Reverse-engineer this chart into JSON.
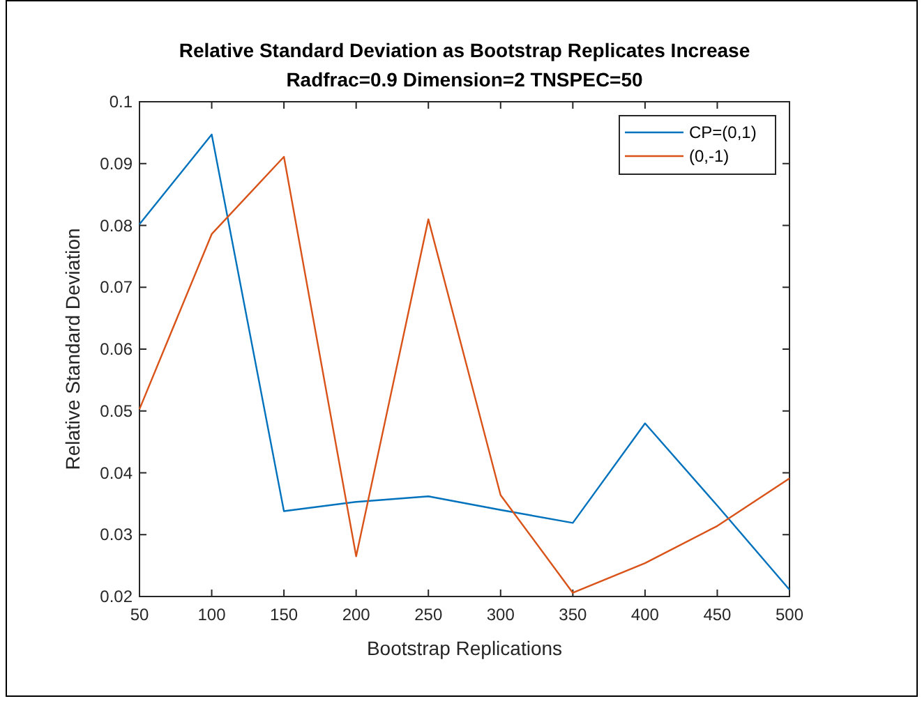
{
  "chart_data": {
    "type": "line",
    "title": "Relative Standard Deviation as Bootstrap Replicates Increase",
    "subtitle": "Radfrac=0.9 Dimension=2 TNSPEC=50",
    "xlabel": "Bootstrap Replications",
    "ylabel": "Relative Standard Deviation",
    "x": [
      50,
      100,
      150,
      200,
      250,
      300,
      350,
      400,
      450,
      500
    ],
    "series": [
      {
        "name": "CP=(0,1)",
        "color": "#0072bd",
        "values": [
          0.0802,
          0.0947,
          0.0338,
          0.0353,
          0.0362,
          0.034,
          0.0319,
          0.048,
          0.0347,
          0.0211
        ]
      },
      {
        "name": "(0,-1)",
        "color": "#d95319",
        "values": [
          0.0503,
          0.0786,
          0.0911,
          0.0265,
          0.081,
          0.0364,
          0.0206,
          0.0254,
          0.0314,
          0.0391
        ]
      }
    ],
    "xlim": [
      50,
      500
    ],
    "xticks": [
      50,
      100,
      150,
      200,
      250,
      300,
      350,
      400,
      450,
      500
    ],
    "ylim": [
      0.02,
      0.1
    ],
    "yticks": [
      0.02,
      0.03,
      0.04,
      0.05,
      0.06,
      0.07,
      0.08,
      0.09,
      0.1
    ],
    "grid": false,
    "legend": "top right",
    "marker": "none",
    "line_style": "solid"
  }
}
